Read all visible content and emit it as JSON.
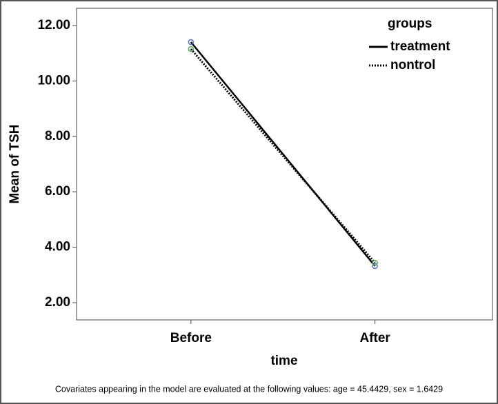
{
  "chart_data": {
    "type": "line",
    "x_label": "time",
    "y_label": "Mean of TSH",
    "categories": [
      "Before",
      "After"
    ],
    "series": [
      {
        "name": "treatment",
        "color": "#000000",
        "marker_color": "#5b6fc4",
        "line_style": "solid",
        "values": [
          11.4,
          3.32
        ]
      },
      {
        "name": "nontrol",
        "color": "#000000",
        "marker_color": "#5aa85a",
        "line_style": "dotted",
        "values": [
          11.15,
          3.44
        ]
      }
    ],
    "ylim": [
      1.38,
      12.62
    ],
    "yticks": [
      {
        "value": 2,
        "label": "2.00"
      },
      {
        "value": 4,
        "label": "4.00"
      },
      {
        "value": 6,
        "label": "6.00"
      },
      {
        "value": 8,
        "label": "8.00"
      },
      {
        "value": 10,
        "label": "10.00"
      },
      {
        "value": 12,
        "label": "12.00"
      }
    ],
    "legend_title": "groups",
    "footnote": "Covariates appearing in the model are evaluated at the following values: age = 45.4429, sex = 1.6429"
  }
}
